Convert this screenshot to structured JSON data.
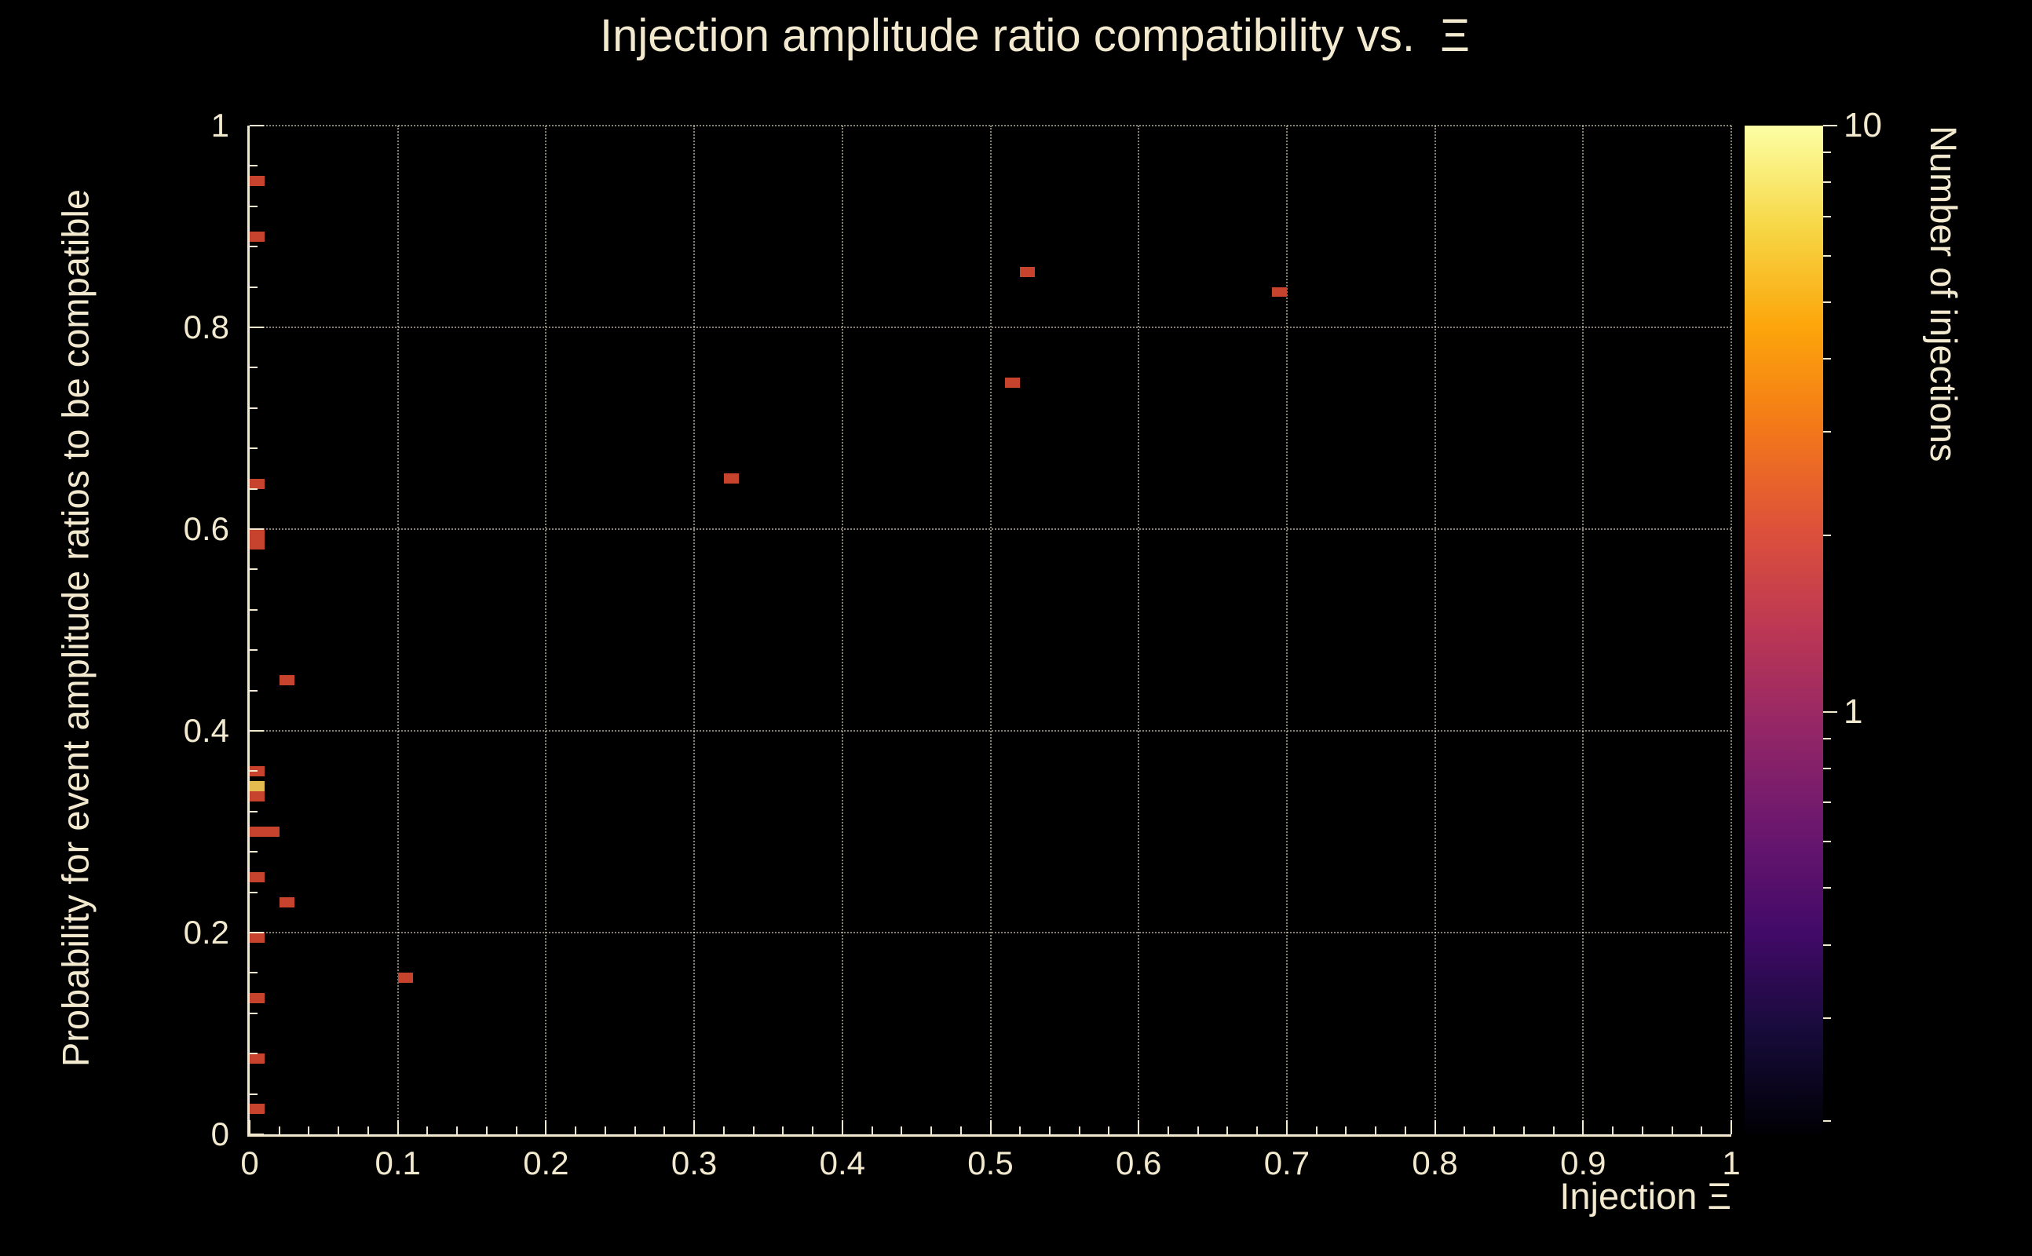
{
  "colors": {
    "background": "#000000",
    "text": "#f2e9cf",
    "grid": "#8f8a77",
    "frame": "#f2e9cf",
    "count_palette": {
      "1": "#c7432e",
      "5": "#e3bb4f"
    }
  },
  "chart_data": {
    "type": "heatmap",
    "title": "Injection amplitude ratio compatibility vs.  Ξ",
    "xlabel": "Injection Ξ",
    "ylabel": "Probability for event amplitude ratios to be compatible",
    "zlabel": "Number of injections",
    "xlim": [
      0,
      1
    ],
    "ylim": [
      0,
      1
    ],
    "grid": true,
    "x_major_ticks": [
      0,
      0.1,
      0.2,
      0.3,
      0.4,
      0.5,
      0.6,
      0.7,
      0.8,
      0.9,
      1
    ],
    "x_tick_labels": [
      "0",
      "0.1",
      "0.2",
      "0.3",
      "0.4",
      "0.5",
      "0.6",
      "0.7",
      "0.8",
      "0.9",
      "1"
    ],
    "y_major_ticks": [
      0,
      0.2,
      0.4,
      0.6,
      0.8,
      1
    ],
    "y_tick_labels": [
      "0",
      "0.2",
      "0.4",
      "0.6",
      "0.8",
      "1"
    ],
    "x_minor_step": 0.02,
    "y_minor_step": 0.04,
    "grid_x": [
      0.1,
      0.2,
      0.3,
      0.4,
      0.5,
      0.6,
      0.7,
      0.8,
      0.9,
      1.0
    ],
    "grid_y": [
      0.2,
      0.4,
      0.6,
      0.8,
      1.0
    ],
    "bin_width": 0.01,
    "bin_height": 0.01,
    "points": [
      {
        "x": 0.005,
        "y": 0.945,
        "n": 1
      },
      {
        "x": 0.005,
        "y": 0.89,
        "n": 1
      },
      {
        "x": 0.525,
        "y": 0.855,
        "n": 1
      },
      {
        "x": 0.695,
        "y": 0.835,
        "n": 1
      },
      {
        "x": 0.515,
        "y": 0.745,
        "n": 1
      },
      {
        "x": 0.325,
        "y": 0.65,
        "n": 1
      },
      {
        "x": 0.005,
        "y": 0.645,
        "n": 1
      },
      {
        "x": 0.005,
        "y": 0.595,
        "n": 1
      },
      {
        "x": 0.005,
        "y": 0.585,
        "n": 1
      },
      {
        "x": 0.025,
        "y": 0.45,
        "n": 1
      },
      {
        "x": 0.005,
        "y": 0.36,
        "n": 1
      },
      {
        "x": 0.005,
        "y": 0.345,
        "n": 5
      },
      {
        "x": 0.005,
        "y": 0.335,
        "n": 1
      },
      {
        "x": 0.005,
        "y": 0.3,
        "n": 1
      },
      {
        "x": 0.015,
        "y": 0.3,
        "n": 1
      },
      {
        "x": 0.005,
        "y": 0.255,
        "n": 1
      },
      {
        "x": 0.025,
        "y": 0.23,
        "n": 1
      },
      {
        "x": 0.005,
        "y": 0.195,
        "n": 1
      },
      {
        "x": 0.105,
        "y": 0.155,
        "n": 1
      },
      {
        "x": 0.005,
        "y": 0.135,
        "n": 1
      },
      {
        "x": 0.005,
        "y": 0.075,
        "n": 1
      },
      {
        "x": 0.005,
        "y": 0.025,
        "n": 1
      }
    ],
    "colorbar": {
      "scale": "log",
      "min": 0.19,
      "max": 10,
      "labeled_ticks": [
        {
          "value": 10,
          "label": "10"
        },
        {
          "value": 1,
          "label": "1"
        }
      ],
      "gradient": [
        "#000004",
        "#160b39",
        "#420a68",
        "#6a176e",
        "#932667",
        "#bc3754",
        "#dd513a",
        "#f37819",
        "#fca50a",
        "#f6d746",
        "#fcffa4"
      ]
    }
  }
}
